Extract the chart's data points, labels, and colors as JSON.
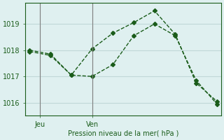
{
  "line1_x": [
    0,
    1,
    2,
    3,
    4,
    5,
    6,
    7,
    8,
    9
  ],
  "line1_y": [
    1018.0,
    1017.85,
    1017.05,
    1017.0,
    1017.45,
    1018.55,
    1019.0,
    1018.55,
    1016.85,
    1015.95
  ],
  "line2_x": [
    0,
    1,
    2,
    3,
    4,
    5,
    6,
    7,
    8,
    9
  ],
  "line2_y": [
    1017.95,
    1017.8,
    1017.05,
    1018.05,
    1018.65,
    1019.05,
    1019.5,
    1018.6,
    1016.75,
    1016.05
  ],
  "xtick_positions": [
    0.5,
    3.0
  ],
  "xtick_labels": [
    "Jeu",
    "Ven"
  ],
  "ylabel_ticks": [
    1016,
    1017,
    1018,
    1019
  ],
  "ylim": [
    1015.5,
    1019.8
  ],
  "xlim": [
    -0.2,
    9.2
  ],
  "xlabel": "Pression niveau de la mer( hPa )",
  "line_color": "#1a5c1a",
  "bg_color": "#dff0f0",
  "grid_color": "#c0d8d8",
  "vline_color": "#808080",
  "vline_positions": [
    0.5,
    3.0
  ]
}
